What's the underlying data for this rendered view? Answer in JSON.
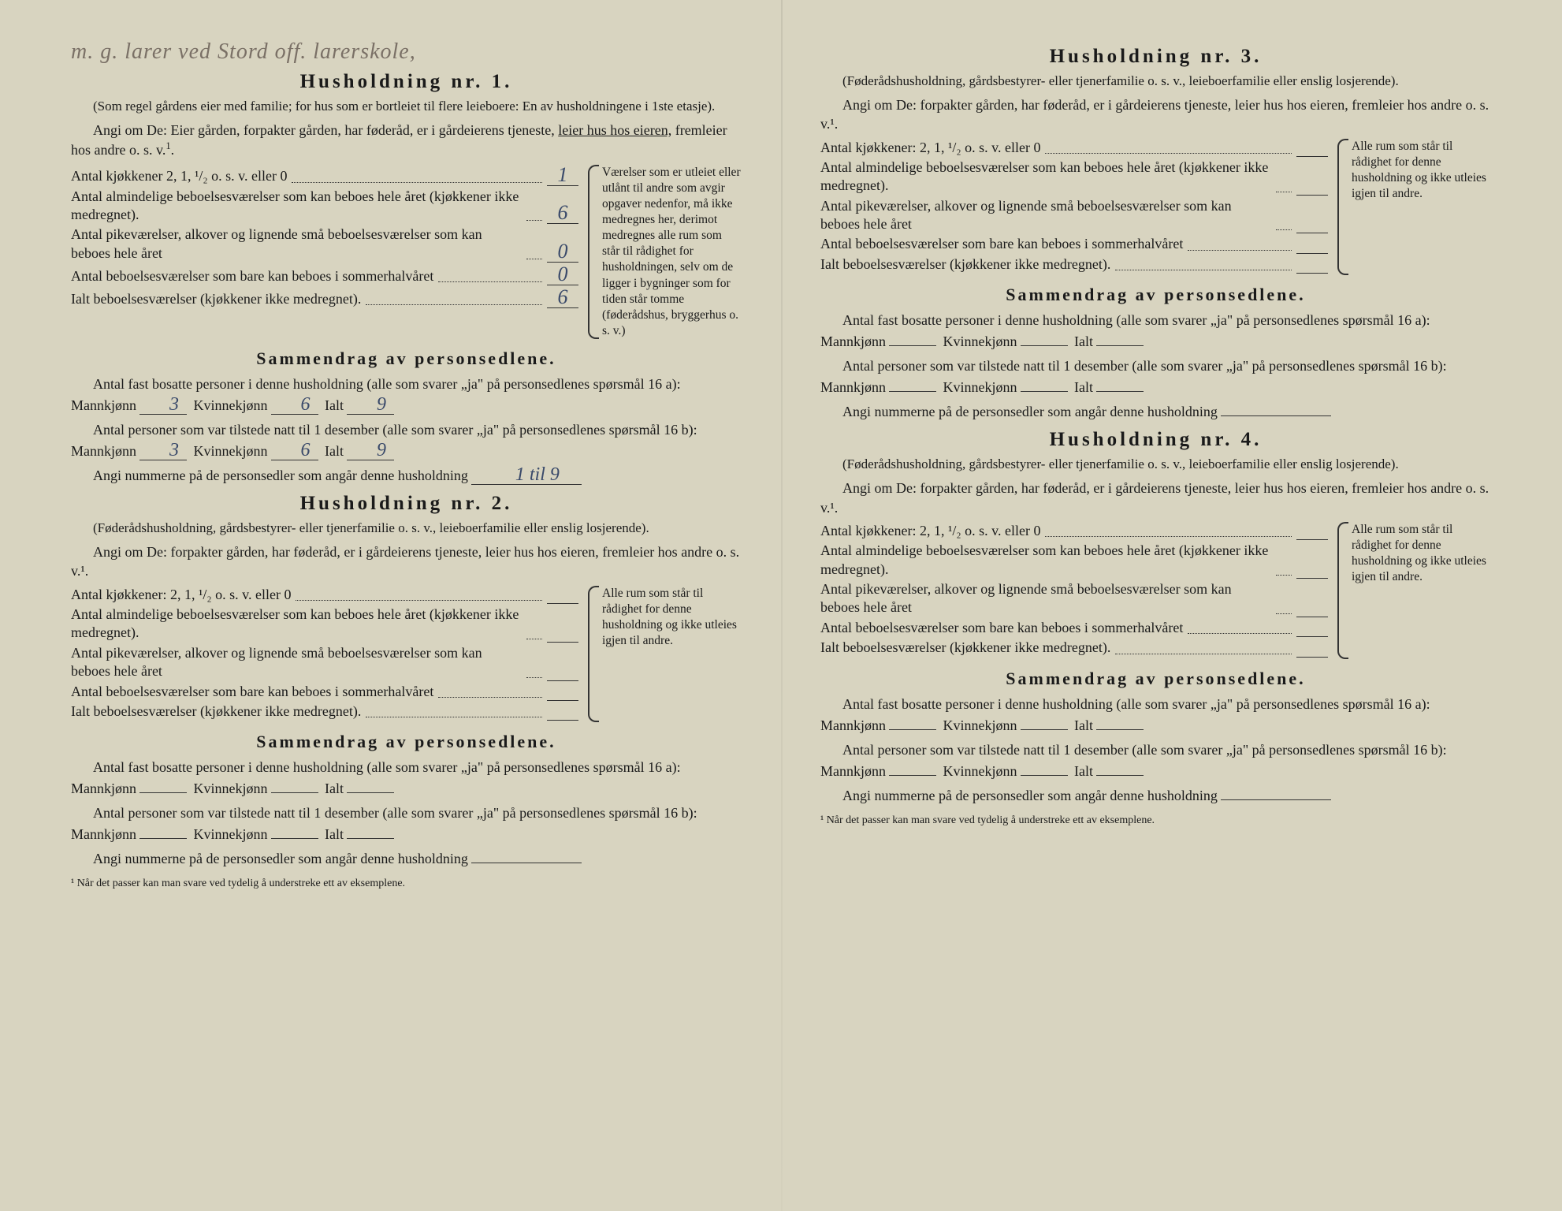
{
  "handwritten_note": "m. g. larer ved Stord off. larerskole,",
  "households": [
    {
      "title": "Husholdning nr. 1.",
      "preamble_note": "(Som regel gårdens eier med familie; for hus som er bortleiet til flere leieboere: En av husholdningene i 1ste etasje).",
      "angi_om": "Angi om De: Eier gården, forpakter gården, har føderåd, er i gårdeierens tjeneste, leier hus hos eieren, fremleier hos andre o. s. v.¹.",
      "angi_om_underlined": "leier hus hos eieren,",
      "rows": [
        {
          "label": "Antal kjøkkener 2, 1, ¹/₂ o. s. v. eller 0",
          "value": "1"
        },
        {
          "label": "Antal almindelige beboelsesværelser som kan beboes hele året (kjøkkener ikke medregnet).",
          "value": "6"
        },
        {
          "label": "Antal pikeværelser, alkover og lignende små beboelsesværelser som kan beboes hele året",
          "value": "0"
        },
        {
          "label": "Antal beboelsesværelser som bare kan beboes i sommerhalvåret",
          "value": "0"
        },
        {
          "label": "Ialt beboelsesværelser (kjøkkener ikke medregnet).",
          "value": "6"
        }
      ],
      "brace_note": "Værelser som er utleiet eller utlånt til andre som avgir opgaver nedenfor, må ikke medregnes her, derimot medregnes alle rum som står til rådighet for husholdningen, selv om de ligger i bygninger som for tiden står tomme (føderådshus, bryggerhus o. s. v.)",
      "summary_title": "Sammendrag av personsedlene.",
      "fast_bosatte": "Antal fast bosatte personer i denne husholdning (alle som svarer „ja\" på personsedlenes spørsmål 16 a):",
      "tilstede": "Antal personer som var tilstede natt til 1 desember (alle som svarer „ja\" på personsedlenes spørsmål 16 b):",
      "mann_a": "3",
      "kvinne_a": "6",
      "ialt_a": "9",
      "mann_b": "3",
      "kvinne_b": "6",
      "ialt_b": "9",
      "nummer_label": "Angi nummerne på de personsedler som angår denne husholdning",
      "nummer_value": "1 til 9"
    },
    {
      "title": "Husholdning nr. 2.",
      "preamble_note": "(Føderådshusholdning, gårdsbestyrer- eller tjenerfamilie o. s. v., leieboerfamilie eller enslig losjerende).",
      "angi_om": "Angi om De: forpakter gården, har føderåd, er i gårdeierens tjeneste, leier hus hos eieren, fremleier hos andre o. s. v.¹.",
      "rows": [
        {
          "label": "Antal kjøkkener: 2, 1, ¹/₂ o. s. v. eller 0",
          "value": ""
        },
        {
          "label": "Antal almindelige beboelsesværelser som kan beboes hele året (kjøkkener ikke medregnet).",
          "value": ""
        },
        {
          "label": "Antal pikeværelser, alkover og lignende små beboelsesværelser som kan beboes hele året",
          "value": ""
        },
        {
          "label": "Antal beboelsesværelser som bare kan beboes i sommerhalvåret",
          "value": ""
        },
        {
          "label": "Ialt beboelsesværelser (kjøkkener ikke medregnet).",
          "value": ""
        }
      ],
      "brace_note": "Alle rum som står til rådighet for denne husholdning og ikke utleies igjen til andre.",
      "summary_title": "Sammendrag av personsedlene.",
      "fast_bosatte": "Antal fast bosatte personer i denne husholdning (alle som svarer „ja\" på personsedlenes spørsmål 16 a):",
      "tilstede": "Antal personer som var tilstede natt til 1 desember (alle som svarer „ja\" på personsedlenes spørsmål 16 b):",
      "mann_a": "",
      "kvinne_a": "",
      "ialt_a": "",
      "mann_b": "",
      "kvinne_b": "",
      "ialt_b": "",
      "nummer_label": "Angi nummerne på de personsedler som angår denne husholdning",
      "nummer_value": "",
      "footnote": "¹ Når det passer kan man svare ved tydelig å understreke ett av eksemplene."
    },
    {
      "title": "Husholdning nr. 3.",
      "preamble_note": "(Føderådshusholdning, gårdsbestyrer- eller tjenerfamilie o. s. v., leieboerfamilie eller enslig losjerende).",
      "angi_om": "Angi om De: forpakter gården, har føderåd, er i gårdeierens tjeneste, leier hus hos eieren, fremleier hos andre o. s. v.¹.",
      "rows": [
        {
          "label": "Antal kjøkkener: 2, 1, ¹/₂ o. s. v. eller 0",
          "value": ""
        },
        {
          "label": "Antal almindelige beboelsesværelser som kan beboes hele året (kjøkkener ikke medregnet).",
          "value": ""
        },
        {
          "label": "Antal pikeværelser, alkover og lignende små beboelsesværelser som kan beboes hele året",
          "value": ""
        },
        {
          "label": "Antal beboelsesværelser som bare kan beboes i sommerhalvåret",
          "value": ""
        },
        {
          "label": "Ialt beboelsesværelser (kjøkkener ikke medregnet).",
          "value": ""
        }
      ],
      "brace_note": "Alle rum som står til rådighet for denne husholdning og ikke utleies igjen til andre.",
      "summary_title": "Sammendrag av personsedlene.",
      "fast_bosatte": "Antal fast bosatte personer i denne husholdning (alle som svarer „ja\" på personsedlenes spørsmål 16 a):",
      "tilstede": "Antal personer som var tilstede natt til 1 desember (alle som svarer „ja\" på personsedlenes spørsmål 16 b):",
      "mann_a": "",
      "kvinne_a": "",
      "ialt_a": "",
      "mann_b": "",
      "kvinne_b": "",
      "ialt_b": "",
      "nummer_label": "Angi nummerne på de personsedler som angår denne husholdning",
      "nummer_value": ""
    },
    {
      "title": "Husholdning nr. 4.",
      "preamble_note": "(Føderådshusholdning, gårdsbestyrer- eller tjenerfamilie o. s. v., leieboerfamilie eller enslig losjerende).",
      "angi_om": "Angi om De: forpakter gården, har føderåd, er i gårdeierens tjeneste, leier hus hos eieren, fremleier hos andre o. s. v.¹.",
      "rows": [
        {
          "label": "Antal kjøkkener: 2, 1, ¹/₂ o. s. v. eller 0",
          "value": ""
        },
        {
          "label": "Antal almindelige beboelsesværelser som kan beboes hele året (kjøkkener ikke medregnet).",
          "value": ""
        },
        {
          "label": "Antal pikeværelser, alkover og lignende små beboelsesværelser som kan beboes hele året",
          "value": ""
        },
        {
          "label": "Antal beboelsesværelser som bare kan beboes i sommerhalvåret",
          "value": ""
        },
        {
          "label": "Ialt beboelsesværelser (kjøkkener ikke medregnet).",
          "value": ""
        }
      ],
      "brace_note": "Alle rum som står til rådighet for denne husholdning og ikke utleies igjen til andre.",
      "summary_title": "Sammendrag av personsedlene.",
      "fast_bosatte": "Antal fast bosatte personer i denne husholdning (alle som svarer „ja\" på personsedlenes spørsmål 16 a):",
      "tilstede": "Antal personer som var tilstede natt til 1 desember (alle som svarer „ja\" på personsedlenes spørsmål 16 b):",
      "mann_a": "",
      "kvinne_a": "",
      "ialt_a": "",
      "mann_b": "",
      "kvinne_b": "",
      "ialt_b": "",
      "nummer_label": "Angi nummerne på de personsedler som angår denne husholdning",
      "nummer_value": "",
      "footnote": "¹ Når det passer kan man svare ved tydelig å understreke ett av eksemplene."
    }
  ],
  "labels": {
    "mannkjonn": "Mannkjønn",
    "kvinnekjonn": "Kvinnekjønn",
    "ialt": "Ialt"
  }
}
